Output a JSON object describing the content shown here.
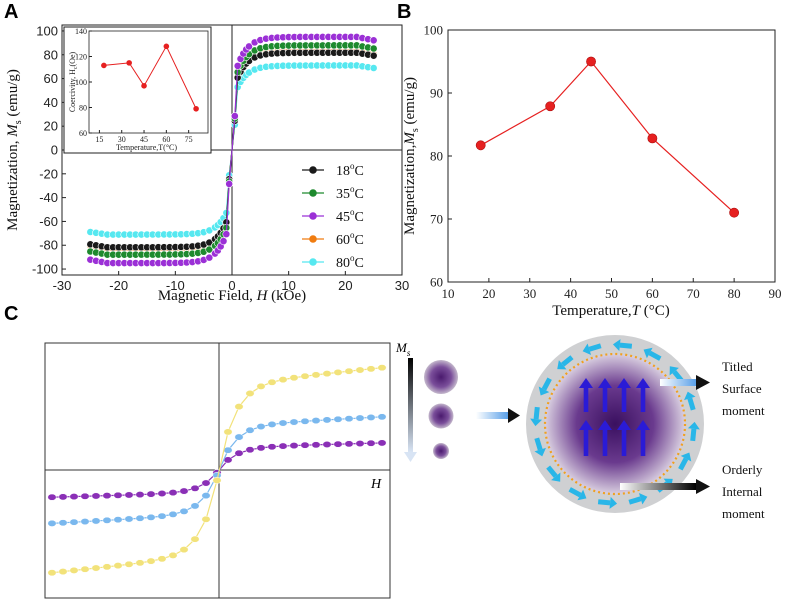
{
  "panel_labels": [
    "A",
    "B",
    "C"
  ],
  "colors": {
    "c18": "#1a1a1a",
    "c35": "#1e8a2e",
    "c45": "#9b30d6",
    "c60": "#f07c10",
    "c80": "#56e8f0",
    "red": "#e62020",
    "c_yellow": "#f2e27a",
    "c_blue": "#7ab8ee",
    "c_purple": "#8a2fb6",
    "arrow_cyan": "#29b6e8",
    "arrow_blue": "#2a1bd6",
    "dot_orange": "#f0a020"
  },
  "chart_data": [
    {
      "id": "A",
      "type": "scatter",
      "xlabel_main": "Magnetic Field, ",
      "xlabel_var": "H",
      "xlabel_unit": " (kOe)",
      "ylabel_main": "Magnetization, ",
      "ylabel_var": "M",
      "ylabel_sub": "s",
      "ylabel_unit": " (emu/g)",
      "xlim": [
        -30,
        30
      ],
      "ylim": [
        -105,
        105
      ],
      "xticks": [
        -30,
        -20,
        -10,
        0,
        10,
        20,
        30
      ],
      "yticks": [
        -100,
        -80,
        -60,
        -40,
        -20,
        0,
        20,
        40,
        60,
        80,
        100
      ],
      "series": [
        {
          "name": "18°C",
          "label_num": "18",
          "label_sup": "o",
          "label_unit": "C",
          "color_key": "c18",
          "Ms": 81.7
        },
        {
          "name": "35°C",
          "label_num": "35",
          "label_sup": "o",
          "label_unit": "C",
          "color_key": "c35",
          "Ms": 87.9
        },
        {
          "name": "45°C",
          "label_num": "45",
          "label_sup": "o",
          "label_unit": "C",
          "color_key": "c45",
          "Ms": 95.0
        },
        {
          "name": "60°C",
          "label_num": "60",
          "label_sup": "o",
          "label_unit": "C",
          "color_key": "c60",
          "Ms": 82.8
        },
        {
          "name": "80°C",
          "label_num": "80",
          "label_sup": "o",
          "label_unit": "C",
          "color_key": "c80",
          "Ms": 71.0
        }
      ],
      "curve_x": [
        -25,
        -24,
        -23,
        -22,
        -21,
        -20,
        -19,
        -18,
        -17,
        -16,
        -15,
        -14,
        -13,
        -12,
        -11,
        -10,
        -9,
        -8,
        -7,
        -6,
        -5,
        -4,
        -3,
        -2.5,
        -2,
        -1.5,
        -1,
        -0.5,
        0.5,
        1,
        1.5,
        2,
        2.5,
        3,
        4,
        5,
        6,
        7,
        8,
        9,
        10,
        11,
        12,
        13,
        14,
        15,
        16,
        17,
        18,
        19,
        20,
        21,
        22,
        23,
        24,
        25
      ]
    },
    {
      "id": "A-inset",
      "type": "line",
      "xlabel": "Temperature,T(°C)",
      "ylabel": "Coercivity, H",
      "ylabel_sub": "c",
      "ylabel_unit": "(Oe)",
      "x": [
        18,
        35,
        45,
        60,
        80
      ],
      "y": [
        113,
        115,
        97,
        128,
        79
      ],
      "xlim": [
        8,
        88
      ],
      "ylim": [
        60,
        140
      ],
      "xticks": [
        15,
        30,
        45,
        60,
        75
      ],
      "yticks": [
        60,
        80,
        100,
        120,
        140
      ]
    },
    {
      "id": "B",
      "type": "line",
      "xlabel_main": "Temperature,",
      "xlabel_var": "T",
      "xlabel_unit": " (°C)",
      "ylabel_main": "Magnetization,",
      "ylabel_var": "M",
      "ylabel_sub": "s",
      "ylabel_unit": " (emu/g)",
      "x": [
        18,
        35,
        45,
        60,
        80
      ],
      "y": [
        81.7,
        87.9,
        95.0,
        82.8,
        71.0
      ],
      "xlim": [
        10,
        90
      ],
      "ylim": [
        60,
        100
      ],
      "xticks": [
        10,
        20,
        30,
        40,
        50,
        60,
        70,
        80,
        90
      ],
      "yticks": [
        60,
        70,
        80,
        90,
        100
      ]
    },
    {
      "id": "C",
      "type": "scatter",
      "xlabel": "H",
      "ms_label": "M",
      "ms_sub": "s",
      "series": [
        {
          "name": "large",
          "color_key": "c_yellow",
          "Ms": 1.0
        },
        {
          "name": "medium",
          "color_key": "c_blue",
          "Ms": 0.52
        },
        {
          "name": "small",
          "color_key": "c_purple",
          "Ms": 0.27
        }
      ]
    }
  ],
  "diagram": {
    "surface_label": [
      "Titled",
      "Surface",
      "moment"
    ],
    "internal_label": [
      "Orderly",
      "Internal",
      "moment"
    ]
  }
}
